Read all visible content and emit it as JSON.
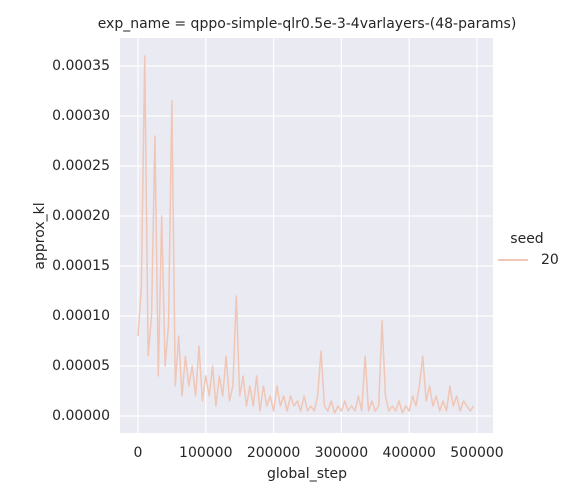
{
  "chart_data": {
    "type": "line",
    "title": "exp_name = qppo-simple-qlr0.5e-3-4varlayers-(48-params)",
    "x_label": "global_step",
    "y_label": "approx_kl",
    "legend_title": "seed",
    "legend": "right",
    "grid": true,
    "x": [
      0,
      5000,
      10000,
      15000,
      20000,
      25000,
      30000,
      35000,
      40000,
      45000,
      50000,
      55000,
      60000,
      65000,
      70000,
      75000,
      80000,
      85000,
      90000,
      95000,
      100000,
      105000,
      110000,
      115000,
      120000,
      125000,
      130000,
      135000,
      140000,
      145000,
      150000,
      155000,
      160000,
      165000,
      170000,
      175000,
      180000,
      185000,
      190000,
      195000,
      200000,
      205000,
      210000,
      215000,
      220000,
      225000,
      230000,
      235000,
      240000,
      245000,
      250000,
      255000,
      260000,
      265000,
      270000,
      275000,
      280000,
      285000,
      290000,
      295000,
      300000,
      305000,
      310000,
      315000,
      320000,
      325000,
      330000,
      335000,
      340000,
      345000,
      350000,
      355000,
      360000,
      365000,
      370000,
      375000,
      380000,
      385000,
      390000,
      395000,
      400000,
      405000,
      410000,
      415000,
      420000,
      425000,
      430000,
      435000,
      440000,
      445000,
      450000,
      455000,
      460000,
      465000,
      470000,
      475000,
      480000,
      485000,
      490000,
      495000
    ],
    "series": [
      {
        "name": "20",
        "color": "#f0c6b6",
        "values": [
          8e-05,
          0.00013,
          0.00036,
          6e-05,
          0.0001,
          0.00028,
          4e-05,
          0.0002,
          5e-05,
          9e-05,
          0.000315,
          3e-05,
          8e-05,
          2e-05,
          6e-05,
          3e-05,
          5e-05,
          2e-05,
          7e-05,
          1.5e-05,
          4e-05,
          2e-05,
          5e-05,
          1e-05,
          4e-05,
          2e-05,
          6e-05,
          1.5e-05,
          3e-05,
          0.00012,
          2e-05,
          4e-05,
          1e-05,
          3e-05,
          1e-05,
          4e-05,
          5e-06,
          3e-05,
          1e-05,
          2e-05,
          5e-06,
          3e-05,
          1e-05,
          2e-05,
          5e-06,
          2e-05,
          1e-05,
          1.5e-05,
          5e-06,
          2e-05,
          5e-06,
          1e-05,
          5e-06,
          2e-05,
          6.5e-05,
          1e-05,
          5e-06,
          1.5e-05,
          3e-06,
          1e-05,
          5e-06,
          1.5e-05,
          5e-06,
          1e-05,
          5e-06,
          2e-05,
          5e-06,
          6e-05,
          5e-06,
          1.5e-05,
          5e-06,
          1e-05,
          9.5e-05,
          2e-05,
          5e-06,
          1e-05,
          5e-06,
          1.5e-05,
          3e-06,
          1e-05,
          5e-06,
          2e-05,
          1e-05,
          3e-05,
          6e-05,
          1.5e-05,
          3e-05,
          1e-05,
          2e-05,
          5e-06,
          1.5e-05,
          5e-06,
          3e-05,
          1e-05,
          2e-05,
          5e-06,
          1.5e-05,
          1e-05,
          5e-06,
          1e-05
        ]
      }
    ],
    "xlim": [
      -26500,
      523600
    ],
    "xticks": [
      0,
      100000,
      200000,
      300000,
      400000,
      500000
    ],
    "ylim": [
      -1.7e-05,
      0.000378
    ],
    "yticks": [
      {
        "value": 0,
        "label": "0.00000"
      },
      {
        "value": 5e-05,
        "label": "0.00005"
      },
      {
        "value": 0.0001,
        "label": "0.00010"
      },
      {
        "value": 0.00015,
        "label": "0.00015"
      },
      {
        "value": 0.0002,
        "label": "0.00020"
      },
      {
        "value": 0.00025,
        "label": "0.00025"
      },
      {
        "value": 0.0003,
        "label": "0.00030"
      },
      {
        "value": 0.00035,
        "label": "0.00035"
      }
    ]
  }
}
